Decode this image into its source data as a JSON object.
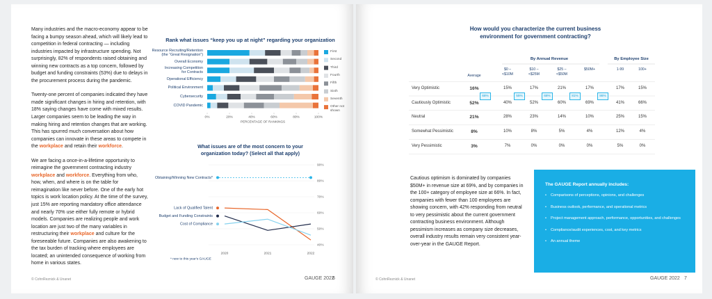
{
  "left_page": {
    "paragraphs": [
      [
        "Many industries and the macro-economy appear to be facing a bumpy season ahead, which will likely lead to competition in federal contracting — including industries impacted by infrastructure spending. Not surprisingly, 82% of respondents raised obtaining and winning new contracts as a top concern, followed by budget and funding constraints (53%) due to delays in the procurement process during the pandemic."
      ],
      [
        "Twenty-one percent of companies indicated they have made significant changes in hiring and retention, with 18% saying changes have come with mixed results. Larger companies seem to be leading the way in making hiring and retention changes that are working. This has spurred much conversation about how companies can innovate in these areas to compete in the ",
        {
          "text": "workplace",
          "style": "highlight"
        },
        " and retain their ",
        {
          "text": "workforce",
          "style": "highlight"
        },
        "."
      ],
      [
        "We are facing a once-in-a-lifetime opportunity to reimagine the government contracting industry ",
        {
          "text": "workplace",
          "style": "highlight"
        },
        " and ",
        {
          "text": "workforce",
          "style": "highlight"
        },
        ". Everything from who, how, when, and where is on the table for reimagination like never before. One of the early hot topics is work location policy. At the time of the survey, just 15% are reporting mandatory office attendance and nearly 70% use either fully remote or hybrid models. Companies are realizing people and work location are just two of the many variables in restructuring their ",
        {
          "text": "workplace",
          "style": "highlight"
        },
        " and culture for the foreseeable future. Companies are also awakening to the tax burden of tracking where employees are located; an unintended consequence of working from home in various states."
      ]
    ],
    "footer": {
      "copyright": "© CohnReznick & Unanet",
      "brand": "GAUGE 2022",
      "page": "6"
    }
  },
  "chart_data": [
    {
      "type": "bar",
      "orientation": "horizontal",
      "stacked": true,
      "title": "Rank what issues “keep you up at night” regarding your organization",
      "categories": [
        "Resource Recruiting/Retention\n(the “Great Resignation”)",
        "Overall Economy",
        "Increasing Competition\nfor Contracts",
        "Operational Efficiency",
        "Political Environment",
        "Cybersecurity",
        "COVID Pandemic"
      ],
      "series": [
        {
          "name": "First",
          "color": "#1aa8e0",
          "values": [
            38,
            20,
            20,
            12,
            5,
            8,
            3
          ]
        },
        {
          "name": "Second",
          "color": "#cfe3ef",
          "values": [
            14,
            18,
            22,
            14,
            10,
            10,
            6
          ]
        },
        {
          "name": "Third",
          "color": "#4a4f59",
          "values": [
            14,
            16,
            18,
            18,
            14,
            12,
            10
          ]
        },
        {
          "name": "Fourth",
          "color": "#dfe2e5",
          "values": [
            10,
            14,
            14,
            16,
            18,
            14,
            14
          ]
        },
        {
          "name": "Fifth",
          "color": "#8c9198",
          "values": [
            8,
            12,
            10,
            14,
            20,
            16,
            18
          ]
        },
        {
          "name": "Sixth",
          "color": "#c9cdd1",
          "values": [
            6,
            10,
            8,
            14,
            16,
            18,
            14
          ]
        },
        {
          "name": "Seventh",
          "color": "#f4c8aa",
          "values": [
            6,
            6,
            4,
            8,
            12,
            16,
            30
          ]
        },
        {
          "name": "Other not shown",
          "color": "#e9733a",
          "values": [
            4,
            4,
            4,
            4,
            5,
            6,
            5
          ]
        }
      ],
      "xlim": [
        0,
        100
      ],
      "xticks": [
        {
          "value": 0,
          "label": "0%"
        },
        {
          "value": 20,
          "label": "20%"
        },
        {
          "value": 40,
          "label": "40%"
        },
        {
          "value": 60,
          "label": "60%"
        },
        {
          "value": 80,
          "label": "80%"
        },
        {
          "value": 100,
          "label": "100%"
        }
      ],
      "xlabel": "PERCENTAGE OF RANKINGS"
    },
    {
      "type": "line",
      "title": "What issues are of the most concern to your organization today? (Select all that apply)",
      "categories": [
        "2020",
        "2021",
        "2022"
      ],
      "series": [
        {
          "name": "Obtaining/Winning New Contracts*",
          "color": "#2bb5e8",
          "values": [
            null,
            null,
            82
          ]
        },
        {
          "name": "Lack of Qualified Talent",
          "color": "#e8662a",
          "values": [
            63,
            62,
            43
          ]
        },
        {
          "name": "Budget and Funding Constraints",
          "color": "#1f2a4a",
          "values": [
            58,
            49,
            53
          ]
        },
        {
          "name": "Cost of Compliance",
          "color": "#86d2ef",
          "values": [
            53,
            56,
            46
          ]
        }
      ],
      "ylim": [
        40,
        90
      ],
      "yticks": [
        {
          "value": 40,
          "label": "40%"
        },
        {
          "value": 50,
          "label": "50%"
        },
        {
          "value": 60,
          "label": "60%"
        },
        {
          "value": 70,
          "label": "70%"
        },
        {
          "value": 80,
          "label": "80%"
        },
        {
          "value": 90,
          "label": "90%"
        }
      ],
      "footnote": "* new to this year's GAUGE"
    }
  ],
  "right_page": {
    "table": {
      "title": "How would you characterize the current business environment for government contracting?",
      "groups": [
        "By Annual Revenue",
        "By Employee Size"
      ],
      "columns": [
        "Average",
        "$0 –\n<$10M",
        "$10 –\n<$25M",
        "$25 –\n<$50M",
        "$50M+",
        "1-99",
        "100+"
      ],
      "rows": [
        {
          "label": "Very Optimistic",
          "cells": [
            "16%",
            "15%",
            "17%",
            "21%",
            "17%",
            "17%",
            "15%"
          ]
        },
        {
          "label": "Cautiously Optimistic",
          "cells": [
            "52%",
            "40%",
            "52%",
            "60%",
            "69%",
            "41%",
            "66%"
          ]
        },
        {
          "label": "Neutral",
          "cells": [
            "21%",
            "28%",
            "23%",
            "14%",
            "10%",
            "25%",
            "15%"
          ]
        },
        {
          "label": "Somewhat Pessimistic",
          "cells": [
            "8%",
            "10%",
            "8%",
            "5%",
            "4%",
            "12%",
            "4%"
          ]
        },
        {
          "label": "Very Pessimistic",
          "cells": [
            "3%",
            "7%",
            "0%",
            "0%",
            "0%",
            "5%",
            "0%"
          ]
        }
      ],
      "combined": [
        "68%",
        "55%",
        "68%",
        "81%",
        "86%"
      ]
    },
    "paragraph": "Cautious optimism is dominated by companies $50M+ in revenue size at 69%, and by companies in the 100+ category of employee size at 66%. In fact, companies with fewer than 100 employees are showing concern, with 42% responding from neutral to very pessimistic about the current government contracting business environment. Although pessimism increases as company size decreases, overall industry results remain very consistent year-over-year in the GAUGE Report.",
    "callout": {
      "title": "The GAUGE Report annually includes:",
      "items": [
        "Comparisons of perceptions, opinions, and challenges",
        "Business outlook, performance, and operational metrics",
        "Project management approach, performance, opportunities, and challenges",
        "Compliance/audit experiences, cost, and key metrics",
        "An annual theme"
      ]
    },
    "footer": {
      "copyright": "© CohnReznick & Unanet",
      "brand": "GAUGE 2022",
      "page": "7"
    }
  }
}
